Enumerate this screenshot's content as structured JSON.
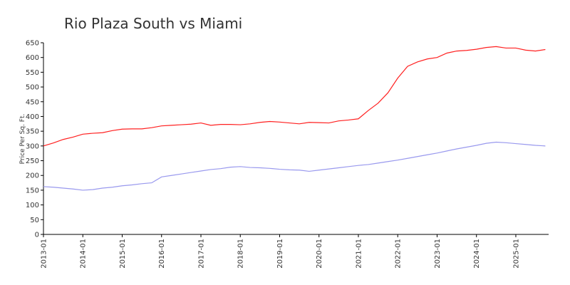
{
  "chart_data": {
    "type": "line",
    "title": "Rio Plaza South vs Miami",
    "y_label": "Price Per Sq. Ft.",
    "x": [
      "2013-01",
      "2013-04",
      "2013-07",
      "2013-10",
      "2014-01",
      "2014-04",
      "2014-07",
      "2014-10",
      "2015-01",
      "2015-04",
      "2015-07",
      "2015-10",
      "2016-01",
      "2016-04",
      "2016-07",
      "2016-10",
      "2017-01",
      "2017-04",
      "2017-07",
      "2017-10",
      "2018-01",
      "2018-04",
      "2018-07",
      "2018-10",
      "2019-01",
      "2019-04",
      "2019-07",
      "2019-10",
      "2020-01",
      "2020-04",
      "2020-07",
      "2020-10",
      "2021-01",
      "2021-04",
      "2021-07",
      "2021-10",
      "2022-01",
      "2022-04",
      "2022-07",
      "2022-10",
      "2023-01",
      "2023-04",
      "2023-07",
      "2023-10",
      "2024-01",
      "2024-04",
      "2024-07",
      "2024-10",
      "2025-01",
      "2025-04",
      "2025-07",
      "2025-10"
    ],
    "series": [
      {
        "color": "#ff2020",
        "values": [
          300,
          310,
          322,
          330,
          340,
          343,
          345,
          352,
          357,
          358,
          358,
          362,
          368,
          370,
          372,
          374,
          378,
          370,
          373,
          373,
          372,
          375,
          380,
          383,
          381,
          378,
          375,
          380,
          379,
          378,
          385,
          388,
          392,
          420,
          445,
          480,
          530,
          570,
          585,
          595,
          600,
          615,
          622,
          624,
          628,
          634,
          637,
          632,
          632,
          625,
          622,
          627
        ]
      },
      {
        "color": "#9999ee",
        "values": [
          162,
          160,
          157,
          154,
          150,
          152,
          157,
          160,
          165,
          168,
          172,
          175,
          195,
          200,
          205,
          210,
          215,
          220,
          223,
          228,
          230,
          227,
          226,
          224,
          221,
          219,
          218,
          214,
          218,
          222,
          226,
          230,
          234,
          237,
          242,
          247,
          252,
          258,
          264,
          270,
          276,
          283,
          290,
          296,
          302,
          309,
          313,
          311,
          308,
          305,
          302,
          300
        ]
      }
    ],
    "xlim": [
      "2013-01",
      "2025-11"
    ],
    "xticks": [
      "2013-01",
      "2014-01",
      "2015-01",
      "2016-01",
      "2017-01",
      "2018-01",
      "2019-01",
      "2020-01",
      "2021-01",
      "2022-01",
      "2023-01",
      "2024-01",
      "2025-01"
    ],
    "ylim": [
      0,
      650
    ],
    "yticks": [
      0,
      50,
      100,
      150,
      200,
      250,
      300,
      350,
      400,
      450,
      500,
      550,
      600,
      650
    ]
  }
}
